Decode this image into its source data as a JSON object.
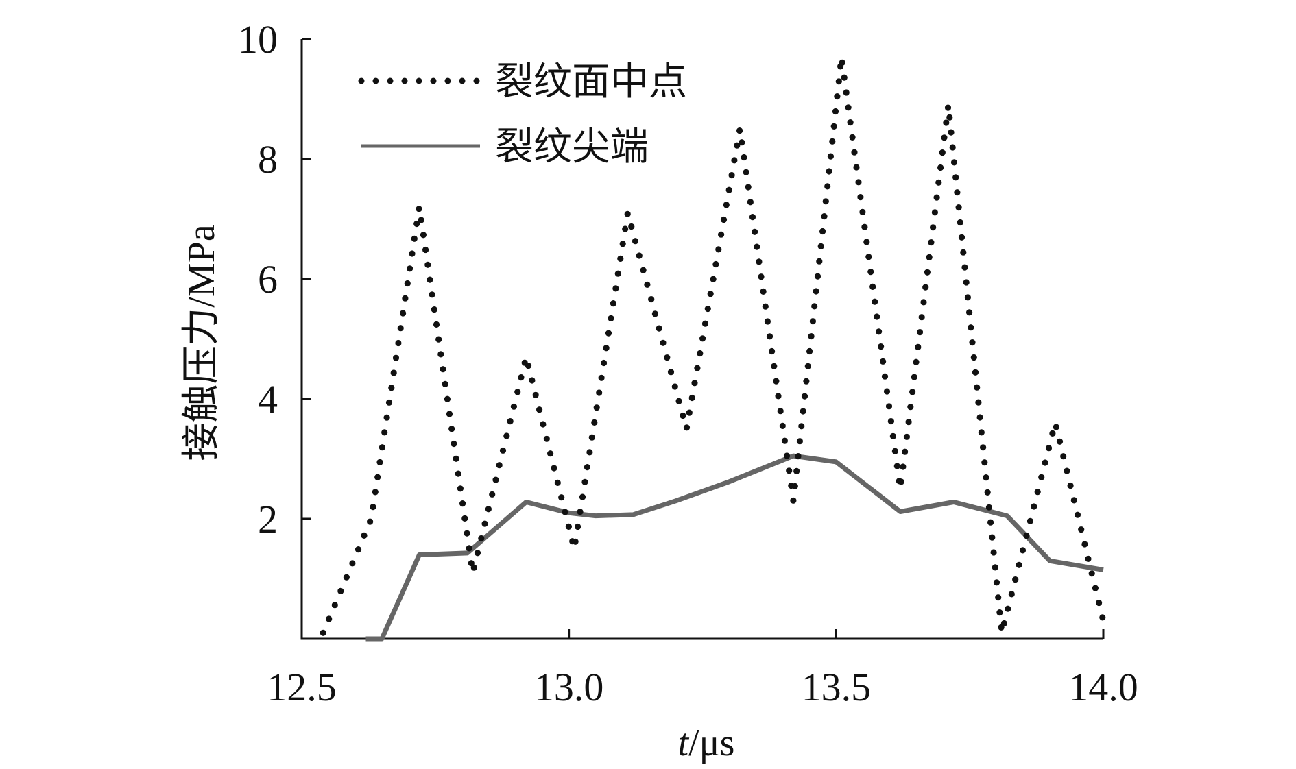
{
  "chart_data": {
    "type": "line",
    "title": "",
    "xlabel": "t/μs",
    "xlabel_italic_part": "t",
    "xlabel_rest": "/μs",
    "ylabel": "接触压力/MPa",
    "xlim": [
      12.5,
      14.0
    ],
    "ylim": [
      0,
      10
    ],
    "x_ticks": [
      12.5,
      13.0,
      13.5,
      14.0
    ],
    "x_tick_labels": [
      "12.5",
      "13.0",
      "13.5",
      "14.0"
    ],
    "y_ticks": [
      2,
      4,
      6,
      8,
      10
    ],
    "y_tick_labels": [
      "2",
      "4",
      "6",
      "8",
      "10"
    ],
    "grid": false,
    "legend_position": "top-left",
    "series": [
      {
        "name": "裂纹面中点",
        "style": "dotted",
        "color": "#111111",
        "points": [
          [
            12.54,
            0.1
          ],
          [
            12.63,
            2.0
          ],
          [
            12.72,
            7.2
          ],
          [
            12.82,
            1.1
          ],
          [
            12.92,
            4.7
          ],
          [
            13.01,
            1.5
          ],
          [
            13.11,
            7.1
          ],
          [
            13.22,
            3.5
          ],
          [
            13.32,
            8.5
          ],
          [
            13.42,
            2.3
          ],
          [
            13.51,
            9.7
          ],
          [
            13.62,
            2.5
          ],
          [
            13.71,
            8.9
          ],
          [
            13.81,
            0.1
          ],
          [
            13.91,
            3.6
          ],
          [
            14.0,
            0.3
          ]
        ]
      },
      {
        "name": "裂纹尖端",
        "style": "solid",
        "color": "#666666",
        "points": [
          [
            12.62,
            0.0
          ],
          [
            12.65,
            0.0
          ],
          [
            12.72,
            1.4
          ],
          [
            12.81,
            1.43
          ],
          [
            12.92,
            2.28
          ],
          [
            13.0,
            2.1
          ],
          [
            13.05,
            2.05
          ],
          [
            13.12,
            2.07
          ],
          [
            13.2,
            2.3
          ],
          [
            13.3,
            2.62
          ],
          [
            13.42,
            3.05
          ],
          [
            13.5,
            2.95
          ],
          [
            13.62,
            2.12
          ],
          [
            13.72,
            2.28
          ],
          [
            13.82,
            2.05
          ],
          [
            13.9,
            1.3
          ],
          [
            14.0,
            1.15
          ]
        ]
      }
    ]
  }
}
